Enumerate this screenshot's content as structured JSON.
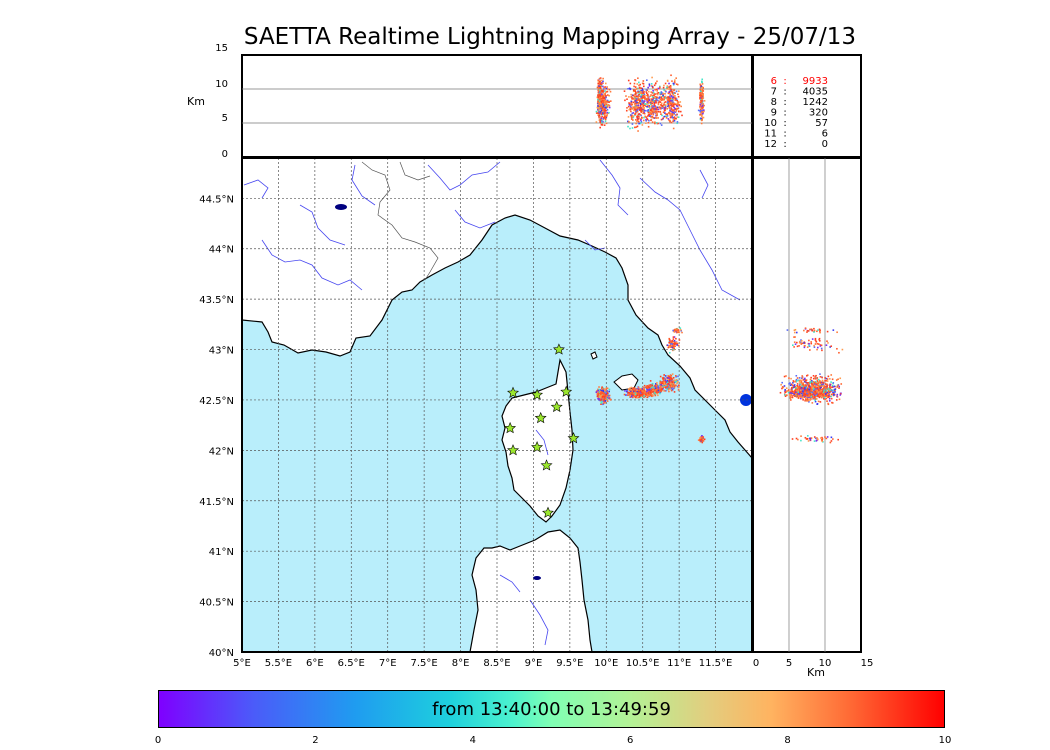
{
  "title": "SAETTA Realtime Lightning Mapping Array - 25/07/13",
  "altitude_panel": {
    "ylabel": "Km",
    "yticks": [
      "0",
      "5",
      "10",
      "15"
    ]
  },
  "counts": [
    {
      "label": "6",
      "value": "9933",
      "color": "#ff0000"
    },
    {
      "label": "7",
      "value": "4035",
      "color": "#000000"
    },
    {
      "label": "8",
      "value": "1242",
      "color": "#000000"
    },
    {
      "label": "9",
      "value": "320",
      "color": "#000000"
    },
    {
      "label": "10",
      "value": "57",
      "color": "#000000"
    },
    {
      "label": "11",
      "value": "6",
      "color": "#000000"
    },
    {
      "label": "12",
      "value": "0",
      "color": "#000000"
    }
  ],
  "map": {
    "lon_labels": [
      "5°E",
      "5.5°E",
      "6°E",
      "6.5°E",
      "7°E",
      "7.5°E",
      "8°E",
      "8.5°E",
      "9°E",
      "9.5°E",
      "10°E",
      "10.5°E",
      "11°E",
      "11.5°E"
    ],
    "lat_labels": [
      "40°N",
      "40.5°N",
      "41°N",
      "41.5°N",
      "42°N",
      "42.5°N",
      "43°N",
      "43.5°N",
      "44°N",
      "44.5°N"
    ],
    "sea_color": "#b9eefb",
    "station_color": "#9be62e"
  },
  "side_panel": {
    "xlabel": "Km",
    "xticks": [
      "0",
      "5",
      "10",
      "15"
    ]
  },
  "colorbar": {
    "label": "from 13:40:00 to 13:49:59",
    "ticks": [
      "0",
      "2",
      "4",
      "6",
      "8",
      "10"
    ]
  }
}
